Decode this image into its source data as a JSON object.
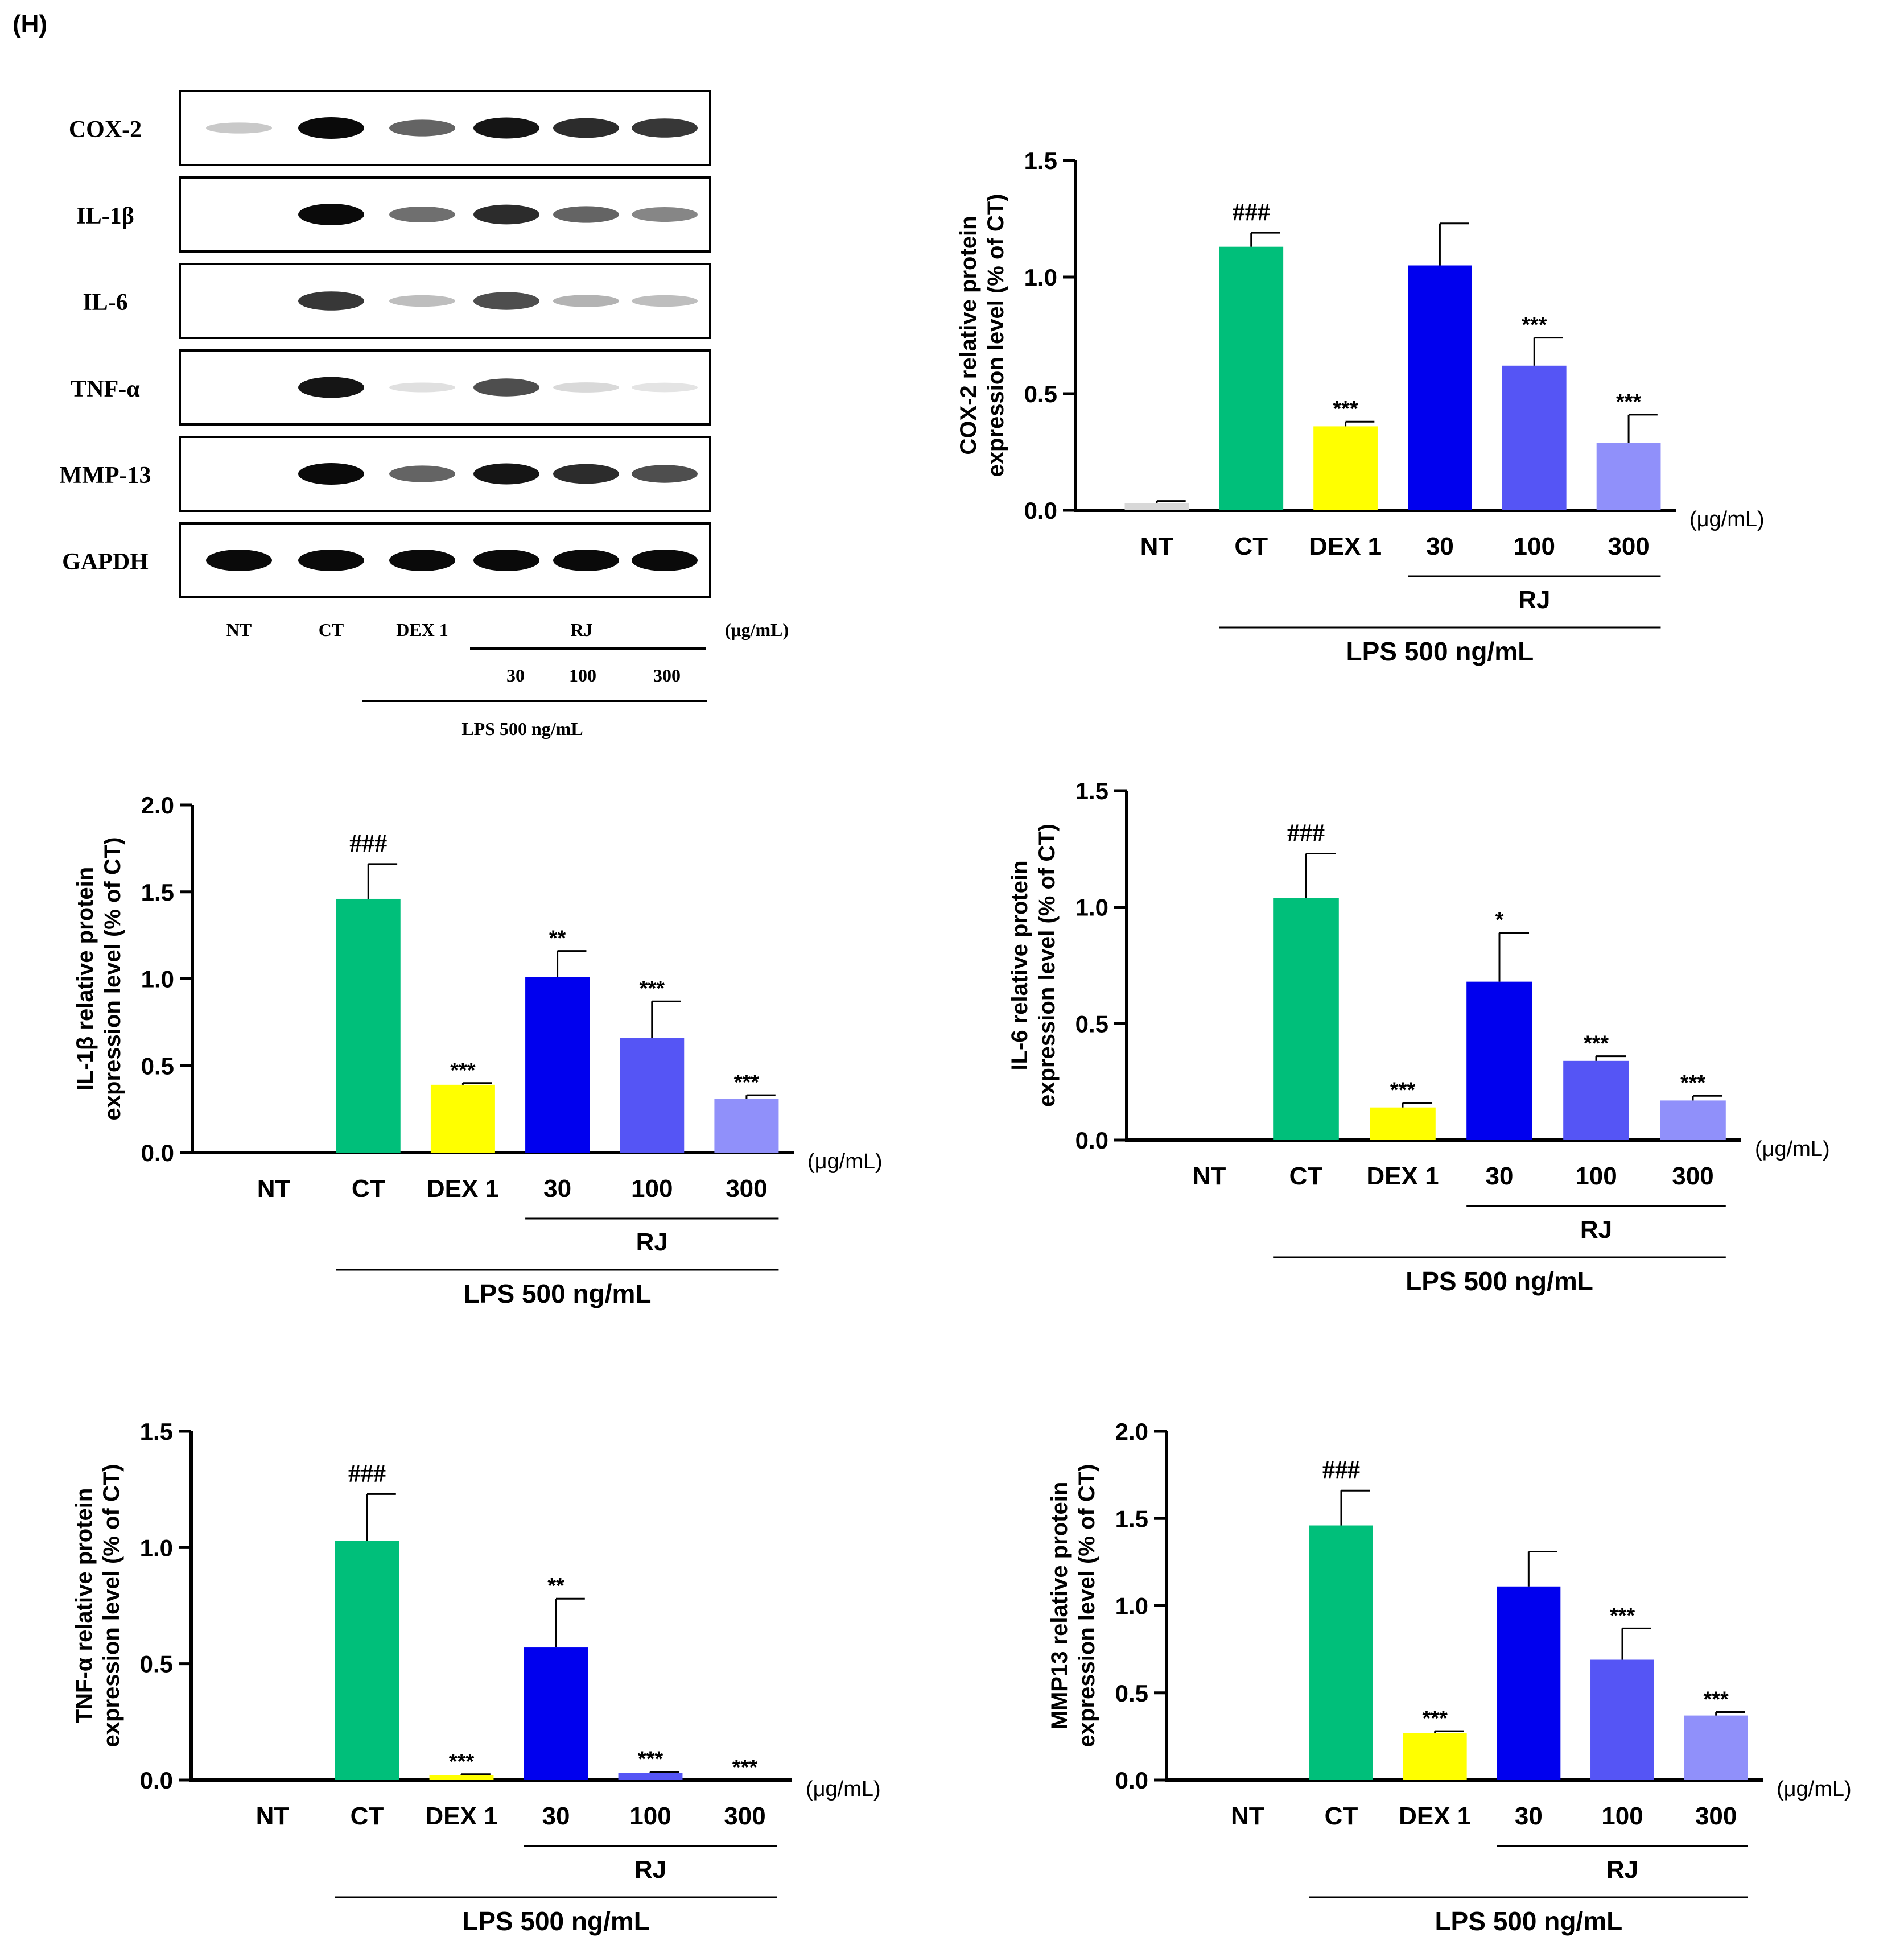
{
  "panel_label": "(H)",
  "colors": {
    "NT": "#d8d8d8",
    "CT": "#00bf7a",
    "DEX 1": "#ffff00",
    "30": "#0000ee",
    "100": "#5555f5",
    "300": "#9090fa",
    "axis": "#000000"
  },
  "blot": {
    "rows": [
      "COX-2",
      "IL-1β",
      "IL-6",
      "TNF-α",
      "MMP-13",
      "GAPDH"
    ],
    "lane_labels": [
      "NT",
      "CT",
      "DEX 1"
    ],
    "rj_label": "RJ",
    "rj_doses": [
      "30",
      "100",
      "300"
    ],
    "unit": "(μg/mL)",
    "lps_label": "LPS 500 ng/mL"
  },
  "chart_data": [
    {
      "id": "cox2",
      "type": "bar",
      "title": "",
      "ylabel": [
        "COX-2 relative protein",
        "expression level (% of CT)"
      ],
      "categories": [
        "NT",
        "CT",
        "DEX 1",
        "30",
        "100",
        "300"
      ],
      "values": [
        0.03,
        1.13,
        0.36,
        1.05,
        0.62,
        0.29
      ],
      "errors": [
        0.01,
        0.06,
        0.02,
        0.18,
        0.12,
        0.12
      ],
      "annotations": [
        "",
        "###",
        "***",
        "",
        "***",
        "***"
      ],
      "ylim": [
        0,
        1.5
      ],
      "yticks": [
        "0.0",
        "0.5",
        "1.0",
        "1.5"
      ],
      "unit": "(μg/mL)",
      "group_label": "RJ",
      "lps_label": "LPS 500 ng/mL"
    },
    {
      "id": "il1b",
      "type": "bar",
      "title": "",
      "ylabel": [
        "IL-1β relative protein",
        "expression level (% of CT)"
      ],
      "categories": [
        "NT",
        "CT",
        "DEX 1",
        "30",
        "100",
        "300"
      ],
      "values": [
        0,
        1.46,
        0.39,
        1.01,
        0.66,
        0.31
      ],
      "errors": [
        0,
        0.2,
        0.01,
        0.15,
        0.21,
        0.02
      ],
      "annotations": [
        "",
        "###",
        "***",
        "**",
        "***",
        "***"
      ],
      "ylim": [
        0,
        2.0
      ],
      "yticks": [
        "0.0",
        "0.5",
        "1.0",
        "1.5",
        "2.0"
      ],
      "unit": "(μg/mL)",
      "group_label": "RJ",
      "lps_label": "LPS 500 ng/mL"
    },
    {
      "id": "il6",
      "type": "bar",
      "title": "",
      "ylabel": [
        "IL-6 relative protein",
        "expression level (% of CT)"
      ],
      "categories": [
        "NT",
        "CT",
        "DEX 1",
        "30",
        "100",
        "300"
      ],
      "values": [
        0,
        1.04,
        0.14,
        0.68,
        0.34,
        0.17
      ],
      "errors": [
        0,
        0.19,
        0.02,
        0.21,
        0.02,
        0.02
      ],
      "annotations": [
        "",
        "###",
        "***",
        "*",
        "***",
        "***"
      ],
      "ylim": [
        0,
        1.5
      ],
      "yticks": [
        "0.0",
        "0.5",
        "1.0",
        "1.5"
      ],
      "unit": "(μg/mL)",
      "group_label": "RJ",
      "lps_label": "LPS 500 ng/mL"
    },
    {
      "id": "tnfa",
      "type": "bar",
      "title": "",
      "ylabel": [
        "TNF-α relative protein",
        "expression level (% of CT)"
      ],
      "categories": [
        "NT",
        "CT",
        "DEX 1",
        "30",
        "100",
        "300"
      ],
      "values": [
        0,
        1.03,
        0.02,
        0.57,
        0.03,
        0
      ],
      "errors": [
        0,
        0.2,
        0.005,
        0.21,
        0.005,
        0
      ],
      "annotations": [
        "",
        "###",
        "***",
        "**",
        "***",
        "***"
      ],
      "ylim": [
        0,
        1.5
      ],
      "yticks": [
        "0.0",
        "0.5",
        "1.0",
        "1.5"
      ],
      "unit": "(μg/mL)",
      "group_label": "RJ",
      "lps_label": "LPS 500 ng/mL"
    },
    {
      "id": "mmp13",
      "type": "bar",
      "title": "",
      "ylabel": [
        "MMP13 relative protein",
        "expression level (% of CT)"
      ],
      "categories": [
        "NT",
        "CT",
        "DEX 1",
        "30",
        "100",
        "300"
      ],
      "values": [
        0,
        1.46,
        0.27,
        1.11,
        0.69,
        0.37
      ],
      "errors": [
        0,
        0.2,
        0.01,
        0.2,
        0.18,
        0.02
      ],
      "annotations": [
        "",
        "###",
        "***",
        "",
        "***",
        "***"
      ],
      "ylim": [
        0,
        2.0
      ],
      "yticks": [
        "0.0",
        "0.5",
        "1.0",
        "1.5",
        "2.0"
      ],
      "unit": "(μg/mL)",
      "group_label": "RJ",
      "lps_label": "LPS 500 ng/mL"
    }
  ]
}
